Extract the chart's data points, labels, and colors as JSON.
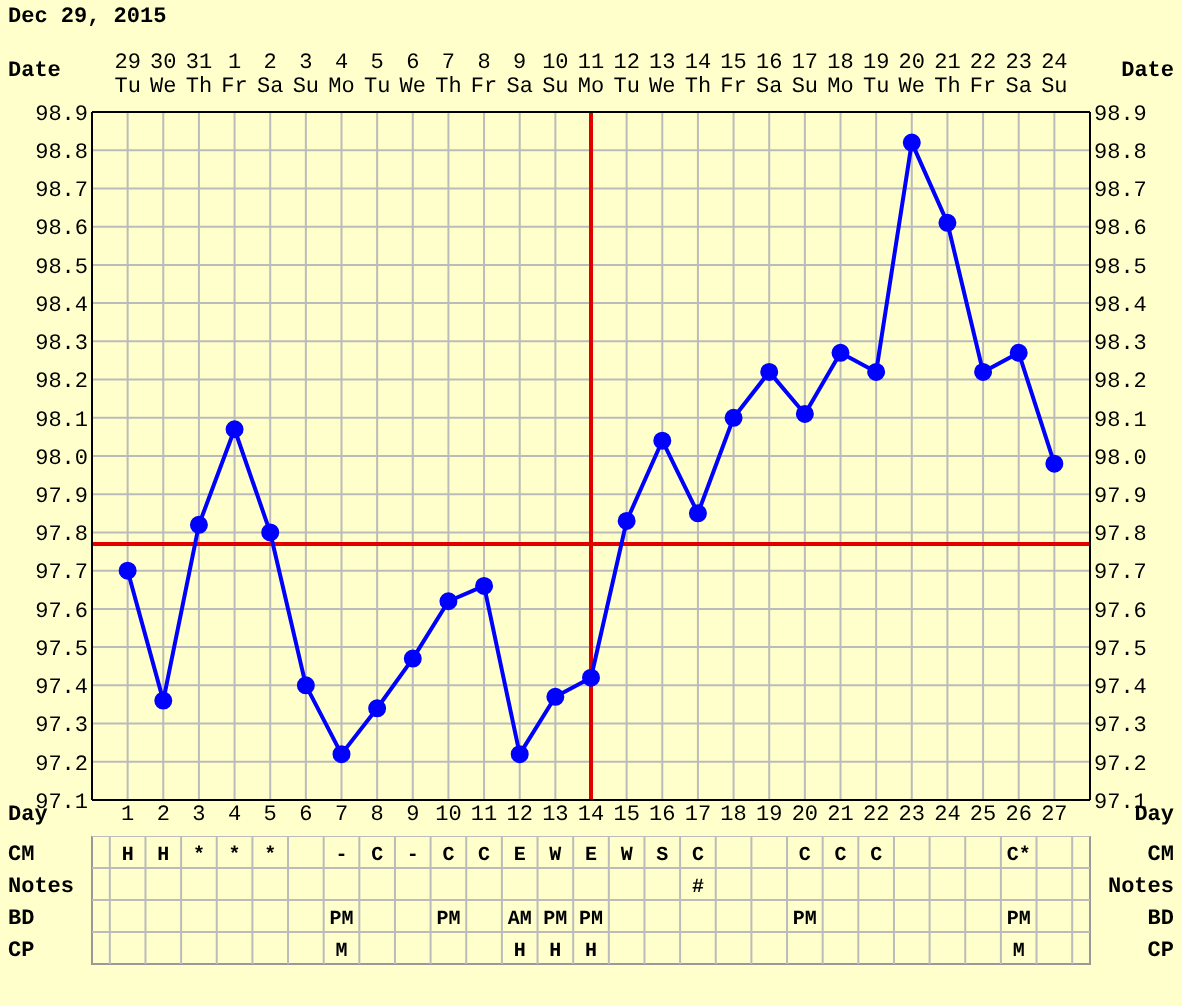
{
  "chart_data": [
    {
      "type": "line",
      "title": "Dec 29, 2015",
      "xlabel": "Date",
      "x2label": "Day",
      "x": [
        "2015-12-29",
        "2015-12-30",
        "2015-12-31",
        "2016-01-01",
        "2016-01-02",
        "2016-01-03",
        "2016-01-04",
        "2016-01-05",
        "2016-01-06",
        "2016-01-07",
        "2016-01-08",
        "2016-01-09",
        "2016-01-10",
        "2016-01-11",
        "2016-01-12",
        "2016-01-13",
        "2016-01-14",
        "2016-01-15",
        "2016-01-16",
        "2016-01-17",
        "2016-01-18",
        "2016-01-19",
        "2016-01-20",
        "2016-01-21",
        "2016-01-22",
        "2016-01-23",
        "2016-01-24"
      ],
      "series": [
        {
          "color": "#0000ff",
          "values": [
            97.7,
            97.36,
            97.82,
            98.07,
            97.8,
            97.4,
            97.22,
            97.34,
            97.47,
            97.62,
            97.66,
            97.22,
            97.37,
            97.42,
            97.83,
            98.04,
            97.85,
            98.1,
            98.22,
            98.11,
            98.27,
            98.22,
            98.82,
            98.61,
            98.22,
            98.27,
            97.98
          ]
        }
      ],
      "xlim": [
        "2015-12-28",
        "2016-01-25"
      ],
      "xticks": [
        {
          "value": "2015-12-29",
          "label": "29 Tu"
        },
        {
          "value": "2015-12-30",
          "label": "30 We"
        },
        {
          "value": "2015-12-31",
          "label": "31 Th"
        },
        {
          "value": "2016-01-01",
          "label": "1 Fr"
        },
        {
          "value": "2016-01-02",
          "label": "2 Sa"
        },
        {
          "value": "2016-01-03",
          "label": "3 Su"
        },
        {
          "value": "2016-01-04",
          "label": "4 Mo"
        },
        {
          "value": "2016-01-05",
          "label": "5 Tu"
        },
        {
          "value": "2016-01-06",
          "label": "6 We"
        },
        {
          "value": "2016-01-07",
          "label": "7 Th"
        },
        {
          "value": "2016-01-08",
          "label": "8 Fr"
        },
        {
          "value": "2016-01-09",
          "label": "9 Sa"
        },
        {
          "value": "2016-01-10",
          "label": "10 Su"
        },
        {
          "value": "2016-01-11",
          "label": "11 Mo"
        },
        {
          "value": "2016-01-12",
          "label": "12 Tu"
        },
        {
          "value": "2016-01-13",
          "label": "13 We"
        },
        {
          "value": "2016-01-14",
          "label": "14 Th"
        },
        {
          "value": "2016-01-15",
          "label": "15 Fr"
        },
        {
          "value": "2016-01-16",
          "label": "16 Sa"
        },
        {
          "value": "2016-01-17",
          "label": "17 Su"
        },
        {
          "value": "2016-01-18",
          "label": "18 Mo"
        },
        {
          "value": "2016-01-19",
          "label": "19 Tu"
        },
        {
          "value": "2016-01-20",
          "label": "20 We"
        },
        {
          "value": "2016-01-21",
          "label": "21 Th"
        },
        {
          "value": "2016-01-22",
          "label": "22 Fr"
        },
        {
          "value": "2016-01-23",
          "label": "23 Sa"
        },
        {
          "value": "2016-01-24",
          "label": "24 Su"
        }
      ],
      "x2lim": [
        0,
        28
      ],
      "x2ticks": [
        1,
        2,
        3,
        4,
        5,
        6,
        7,
        8,
        9,
        10,
        11,
        12,
        13,
        14,
        15,
        16,
        17,
        18,
        19,
        20,
        21,
        22,
        23,
        24,
        25,
        26,
        27
      ],
      "ylim": [
        97.1,
        98.9
      ],
      "yticks": [
        97.1,
        97.2,
        97.3,
        97.4,
        97.5,
        97.6,
        97.7,
        97.8,
        97.9,
        {
          "value": 98,
          "label": "98.0"
        },
        98.1,
        98.2,
        98.3,
        98.4,
        98.5,
        98.6,
        98.7,
        98.8,
        98.9
      ],
      "y2lim": [
        97.1,
        98.9
      ],
      "y2ticks": [
        97.1,
        97.2,
        97.3,
        97.4,
        97.5,
        97.6,
        97.7,
        97.8,
        97.9,
        {
          "value": 98,
          "label": "98.0"
        },
        98.1,
        98.2,
        98.3,
        98.4,
        98.5,
        98.6,
        98.7,
        98.8,
        98.9
      ],
      "grid": true,
      "marker": "circle",
      "line_style": "solid",
      "ref_lines": [
        {
          "axis": "y",
          "value": 97.77,
          "color": "#e00000"
        },
        {
          "axis": "x",
          "value": "2016-01-11",
          "color": "#e00000"
        }
      ]
    },
    {
      "type": "other",
      "y_categories": [
        "CM",
        "Notes",
        "BD",
        "CP"
      ],
      "cell_labels": [
        [
          "H",
          "H",
          "*",
          "*",
          "*",
          null,
          "-",
          "C",
          "-",
          "C",
          "C",
          "E",
          "W",
          "E",
          "W",
          "S",
          "C",
          null,
          null,
          "C",
          "C",
          "C",
          null,
          null,
          null,
          "C*",
          null
        ],
        [
          null,
          null,
          null,
          null,
          null,
          null,
          null,
          null,
          null,
          null,
          null,
          null,
          null,
          null,
          null,
          null,
          "#",
          null,
          null,
          null,
          null,
          null,
          null,
          null,
          null,
          null,
          null
        ],
        [
          null,
          null,
          null,
          null,
          null,
          null,
          "PM",
          null,
          null,
          "PM",
          null,
          "AM",
          "PM",
          "PM",
          null,
          null,
          null,
          null,
          null,
          "PM",
          null,
          null,
          null,
          null,
          null,
          "PM",
          null
        ],
        [
          null,
          null,
          null,
          null,
          null,
          null,
          "M",
          null,
          null,
          null,
          null,
          "H",
          "H",
          "H",
          null,
          null,
          null,
          null,
          null,
          null,
          null,
          null,
          null,
          null,
          null,
          "M",
          null
        ]
      ]
    }
  ]
}
